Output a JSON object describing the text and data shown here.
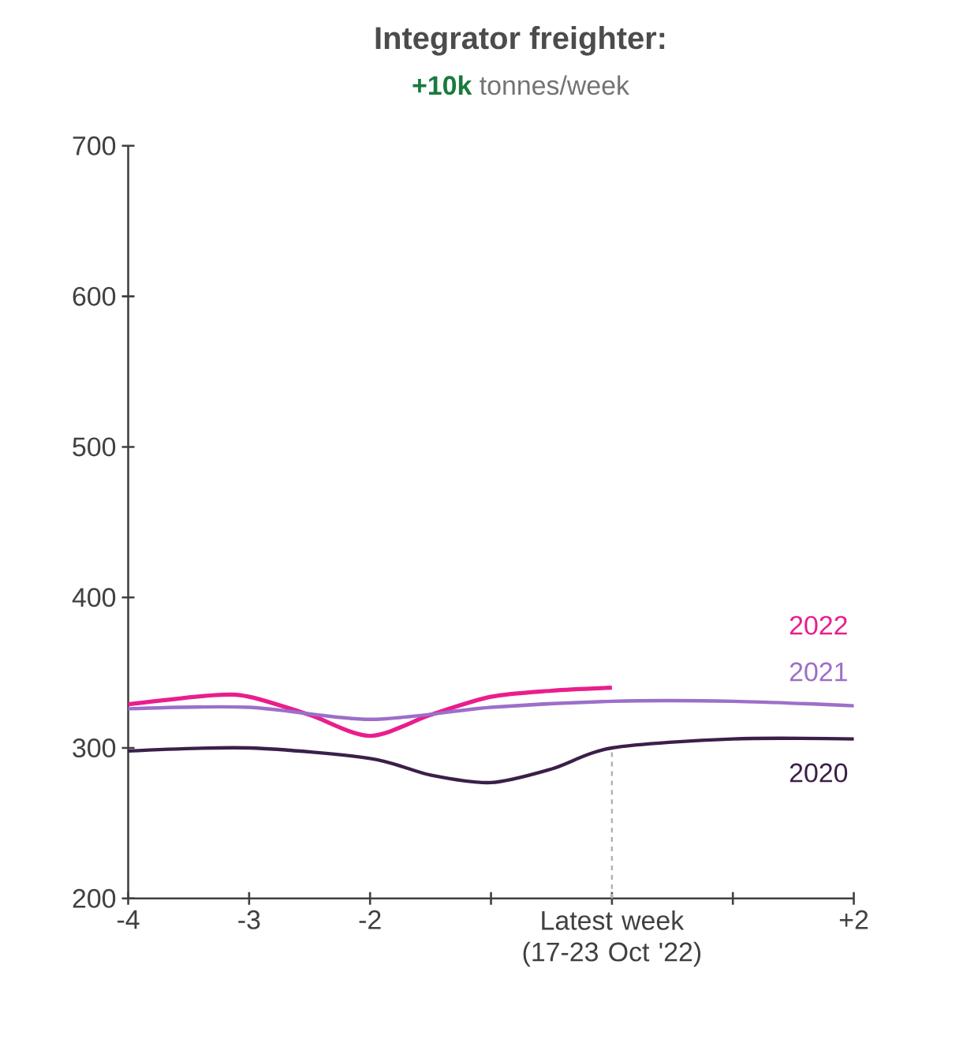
{
  "chart_data": {
    "type": "line",
    "title": "Integrator freighter:",
    "subtitle": "**+10k** tonnes/week",
    "legend": false,
    "grid": false,
    "xlim": [
      -4,
      2
    ],
    "xticks": [
      {
        "value": -4,
        "label": "-4"
      },
      {
        "value": -3,
        "label": "-3"
      },
      {
        "value": -2,
        "label": "-2"
      },
      {
        "value": -1,
        "label": null
      },
      {
        "value": 0,
        "label": "Latest week (17-23 Oct '22)"
      },
      {
        "value": 1,
        "label": null
      },
      {
        "value": 2,
        "label": "+2"
      }
    ],
    "ylim": [
      200,
      700
    ],
    "yticks": [
      200,
      300,
      400,
      500,
      600,
      700
    ],
    "ref_lines": [
      {
        "axis": "x",
        "value": 0,
        "color": "#b0b0b0",
        "line_style": "dashed"
      }
    ],
    "series": [
      {
        "name": "2022",
        "color": "#e91e8c",
        "x": [
          -4,
          -3.3,
          -3,
          -2.5,
          -2,
          -1.5,
          -1,
          -0.5,
          0
        ],
        "values": [
          329,
          335,
          334,
          322,
          308,
          322,
          334,
          338,
          340
        ]
      },
      {
        "name": "2021",
        "color": "#9c6fc9",
        "x": [
          -4,
          -3,
          -2,
          -1,
          0,
          1,
          2
        ],
        "values": [
          326,
          327,
          319,
          327,
          331,
          331,
          328
        ]
      },
      {
        "name": "2020",
        "color": "#3b1f4a",
        "x": [
          -4,
          -3,
          -2,
          -1.5,
          -1,
          -0.5,
          0,
          1,
          2
        ],
        "values": [
          298,
          300,
          293,
          282,
          277,
          286,
          300,
          306,
          306
        ]
      }
    ]
  }
}
